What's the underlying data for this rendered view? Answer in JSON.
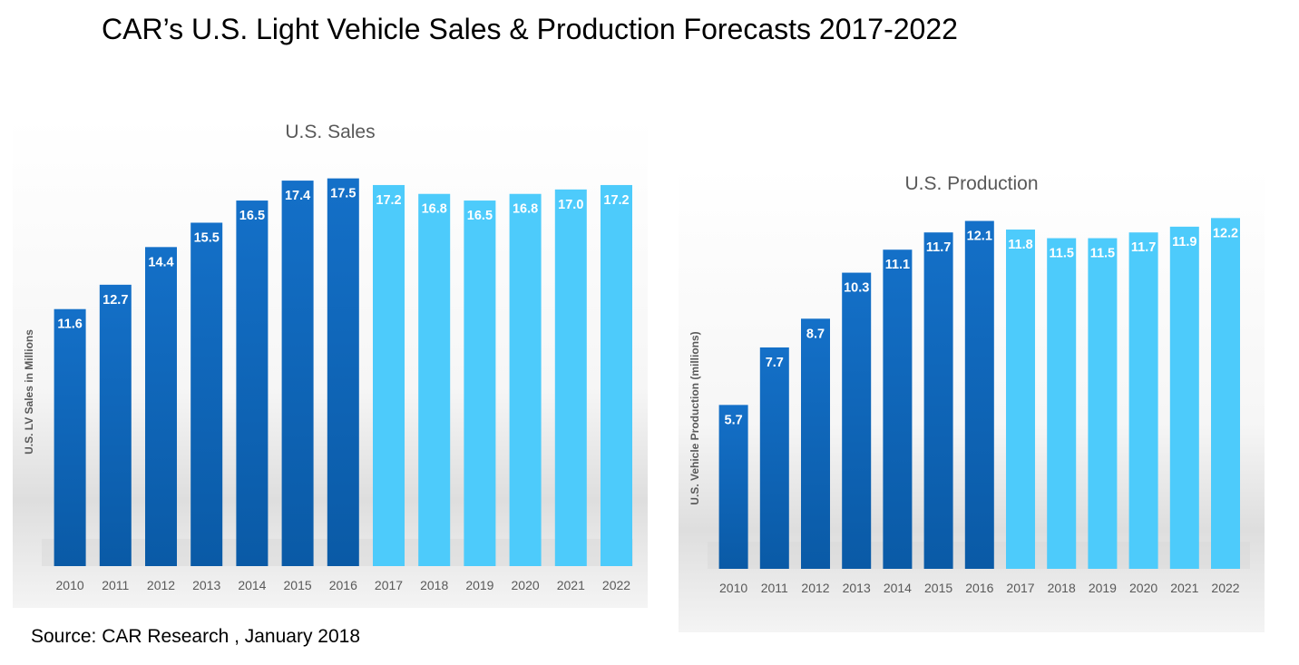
{
  "page": {
    "title": "CAR’s U.S. Light Vehicle Sales & Production Forecasts 2017-2022",
    "source": "Source: CAR Research , January 2018"
  },
  "colors": {
    "actual": "#1470C8",
    "actual_dark": "#0A5AA6",
    "forecast": "#4DCBFB",
    "label_text": "#FFFFFF",
    "axis_text": "#595959",
    "title_text": "#595959"
  },
  "chart_data": [
    {
      "type": "bar",
      "title": "U.S. Sales",
      "xlabel": "",
      "ylabel": "U.S. LV Sales in Millions",
      "ylim": [
        0,
        19
      ],
      "grid": false,
      "categories": [
        "2010",
        "2011",
        "2012",
        "2013",
        "2014",
        "2015",
        "2016",
        "2017",
        "2018",
        "2019",
        "2020",
        "2021",
        "2022"
      ],
      "values": [
        11.6,
        12.7,
        14.4,
        15.5,
        16.5,
        17.4,
        17.5,
        17.2,
        16.8,
        16.5,
        16.8,
        17.0,
        17.2
      ],
      "value_labels": [
        "11.6",
        "12.7",
        "14.4",
        "15.5",
        "16.5",
        "17.4",
        "17.5",
        "17.2",
        "16.8",
        "16.5",
        "16.8",
        "17.0",
        "17.2"
      ],
      "series_type": [
        "actual",
        "actual",
        "actual",
        "actual",
        "actual",
        "actual",
        "actual",
        "forecast",
        "forecast",
        "forecast",
        "forecast",
        "forecast",
        "forecast"
      ]
    },
    {
      "type": "bar",
      "title": "U.S. Production",
      "xlabel": "",
      "ylabel": "U.S. Vehicle Production (millions)",
      "ylim": [
        0,
        13
      ],
      "grid": false,
      "categories": [
        "2010",
        "2011",
        "2012",
        "2013",
        "2014",
        "2015",
        "2016",
        "2017",
        "2018",
        "2019",
        "2020",
        "2021",
        "2022"
      ],
      "values": [
        5.7,
        7.7,
        8.7,
        10.3,
        11.1,
        11.7,
        12.1,
        11.8,
        11.5,
        11.5,
        11.7,
        11.9,
        12.2
      ],
      "value_labels": [
        "5.7",
        "7.7",
        "8.7",
        "10.3",
        "11.1",
        "11.7",
        "12.1",
        "11.8",
        "11.5",
        "11.5",
        "11.7",
        "11.9",
        "12.2"
      ],
      "series_type": [
        "actual",
        "actual",
        "actual",
        "actual",
        "actual",
        "actual",
        "actual",
        "forecast",
        "forecast",
        "forecast",
        "forecast",
        "forecast",
        "forecast"
      ]
    }
  ]
}
